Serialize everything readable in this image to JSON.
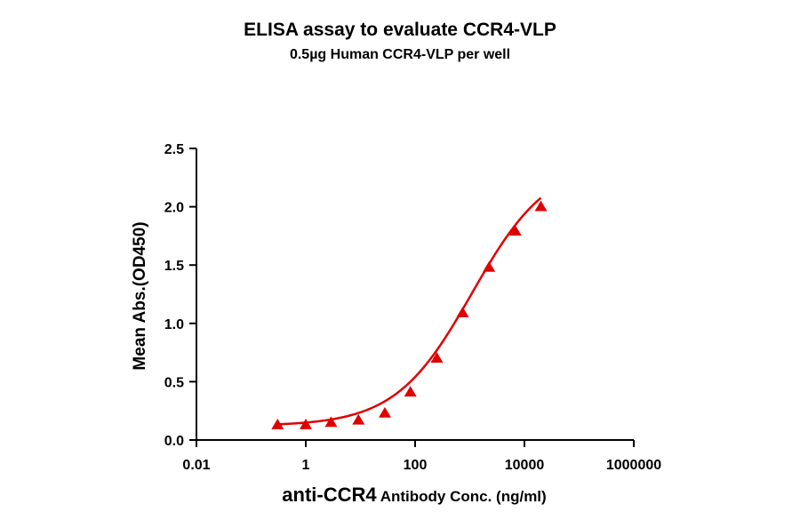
{
  "chart_data": {
    "type": "scatter",
    "title": "ELISA assay to evaluate CCR4-VLP",
    "subtitle": "0.5µg Human CCR4-VLP per well",
    "xlabel_main": "anti-CCR4",
    "xlabel_rest": " Antibody Conc. (ng/ml)",
    "ylabel": "Mean Abs.(OD450)",
    "x_scale": "log",
    "xlim": [
      0.01,
      1000000
    ],
    "ylim": [
      0,
      2.5
    ],
    "x_ticks": [
      0.01,
      1,
      100,
      10000,
      1000000
    ],
    "x_tick_labels": [
      "0.01",
      "1",
      "100",
      "10000",
      "1000000"
    ],
    "y_ticks": [
      0,
      0.5,
      1,
      1.5,
      2,
      2.5
    ],
    "y_tick_labels": [
      "0.0",
      "0.5",
      "1.0",
      "1.5",
      "2.0",
      "2.5"
    ],
    "series": [
      {
        "color": "#e00000",
        "marker": "triangle",
        "x": [
          0.305,
          1.0,
          2.9,
          9.2,
          28,
          82,
          250,
          740,
          2250,
          6800,
          20000
        ],
        "y": [
          0.13,
          0.13,
          0.15,
          0.17,
          0.23,
          0.41,
          0.7,
          1.09,
          1.48,
          1.79,
          2.0
        ]
      }
    ],
    "fit_curve": {
      "type": "4PL",
      "color": "#e00000",
      "bottom": 0.12,
      "top": 2.4,
      "ec50": 1100,
      "hill": 0.62,
      "x_range": [
        0.305,
        20000
      ]
    },
    "grid": false,
    "legend": "none"
  }
}
